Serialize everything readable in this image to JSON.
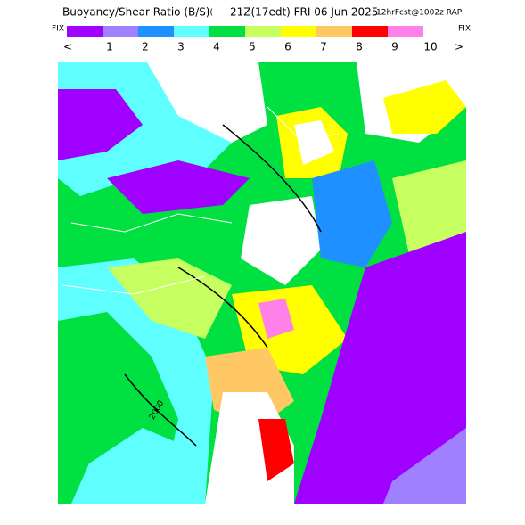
{
  "header": {
    "title": "Buoyancy/Shear Ratio (B/S)",
    "valid": "21Z(17edt) FRI 06 Jun 2025",
    "forecast": "12hrFcst@1002z RAP"
  },
  "colorbar": {
    "left_label": "FIX",
    "right_label": "FIX",
    "under": "<",
    "over": ">",
    "labels": [
      "1",
      "2",
      "3",
      "4",
      "5",
      "6",
      "7",
      "8",
      "9",
      "10"
    ],
    "colors": [
      "#9f00ff",
      "#a080ff",
      "#1e90ff",
      "#60ffff",
      "#00e040",
      "#c8ff60",
      "#ffff00",
      "#ffc864",
      "#ff0000",
      "#ff80e8"
    ]
  },
  "map": {
    "contour_label": "2000"
  }
}
